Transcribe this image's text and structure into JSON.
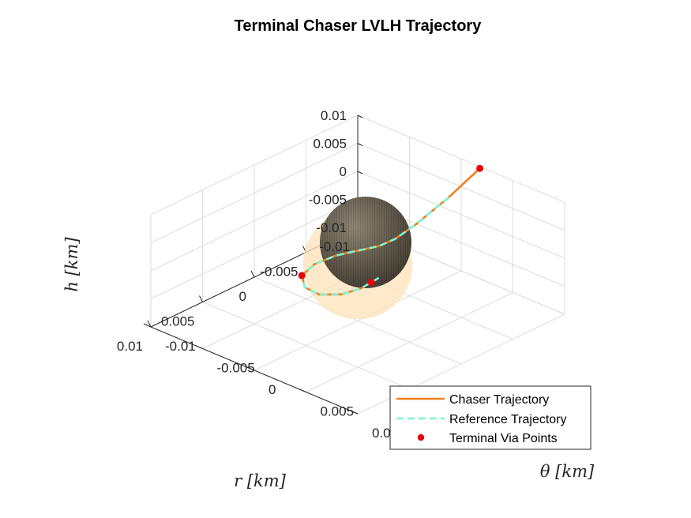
{
  "chart_data": {
    "type": "line3d",
    "title": "Terminal Chaser LVLH Trajectory",
    "xlabel": "r [km]",
    "ylabel": "θ [km]",
    "zlabel": "h [km]",
    "xlim": [
      -0.01,
      0.01
    ],
    "ylim": [
      -0.01,
      0.01
    ],
    "zlim": [
      -0.01,
      0.01
    ],
    "x_ticks": [
      "-0.01",
      "-0.005",
      "0",
      "0.005",
      "0.01"
    ],
    "y_ticks": [
      "-0.01",
      "-0.005",
      "0",
      "0.005",
      "0.01"
    ],
    "z_ticks": [
      "-0.01",
      "-0.005",
      "0",
      "0.005",
      "0.01"
    ],
    "grid": true,
    "legend_position": "bottom-right",
    "series": [
      {
        "name": "Chaser Trajectory",
        "style": "solid",
        "color": "#f07f1e",
        "points": [
          [
            -0.0095,
            0.0023,
            0.0105
          ],
          [
            -0.0053,
            0.0035,
            0.01
          ],
          [
            -0.0013,
            0.0043,
            0.0093
          ],
          [
            0.0007,
            0.0043,
            0.0085
          ],
          [
            0.0015,
            0.0035,
            0.0073
          ],
          [
            0.002,
            0.002,
            0.0058
          ],
          [
            0.0026,
            0.0005,
            0.0043
          ],
          [
            0.0038,
            -0.0004,
            0.0031
          ],
          [
            0.0052,
            -0.0002,
            0.0025
          ],
          [
            0.0064,
            0.0013,
            0.0026
          ],
          [
            0.007,
            0.0033,
            0.0034
          ],
          [
            0.0069,
            0.0053,
            0.0049
          ],
          [
            0.0064,
            0.0067,
            0.0066
          ],
          [
            0.006,
            0.0073,
            0.0078
          ]
        ]
      },
      {
        "name": "Reference Trajectory",
        "style": "dashed",
        "color": "#7ff3d2",
        "points": [
          [
            -0.0053,
            0.0035,
            0.01
          ],
          [
            -0.0013,
            0.0043,
            0.0093
          ],
          [
            0.0007,
            0.0043,
            0.0085
          ],
          [
            0.0015,
            0.0035,
            0.0073
          ],
          [
            0.002,
            0.002,
            0.0058
          ],
          [
            0.0026,
            0.0005,
            0.0043
          ],
          [
            0.0038,
            -0.0004,
            0.0031
          ],
          [
            0.0052,
            -0.0002,
            0.0025
          ],
          [
            0.0064,
            0.0013,
            0.0026
          ],
          [
            0.007,
            0.0033,
            0.0034
          ],
          [
            0.0069,
            0.0053,
            0.0049
          ],
          [
            0.0064,
            0.0067,
            0.0066
          ],
          [
            0.006,
            0.0073,
            0.0078
          ],
          [
            0.0056,
            0.0079,
            0.009
          ]
        ]
      },
      {
        "name": "Terminal Via Points",
        "style": "markers",
        "color": "#e8000b",
        "points": [
          [
            -0.0095,
            0.0023,
            0.0105
          ],
          [
            0.0052,
            -0.0002,
            0.0025
          ],
          [
            0.006,
            0.0073,
            0.0078
          ]
        ]
      }
    ],
    "target_body": {
      "center": [
        0,
        0,
        0
      ],
      "radius": 0.0043,
      "color": "#6b6355"
    },
    "keep_out_sphere": {
      "center": [
        0,
        0,
        0
      ],
      "radius": 0.0085,
      "color": "#fde3b8"
    }
  }
}
